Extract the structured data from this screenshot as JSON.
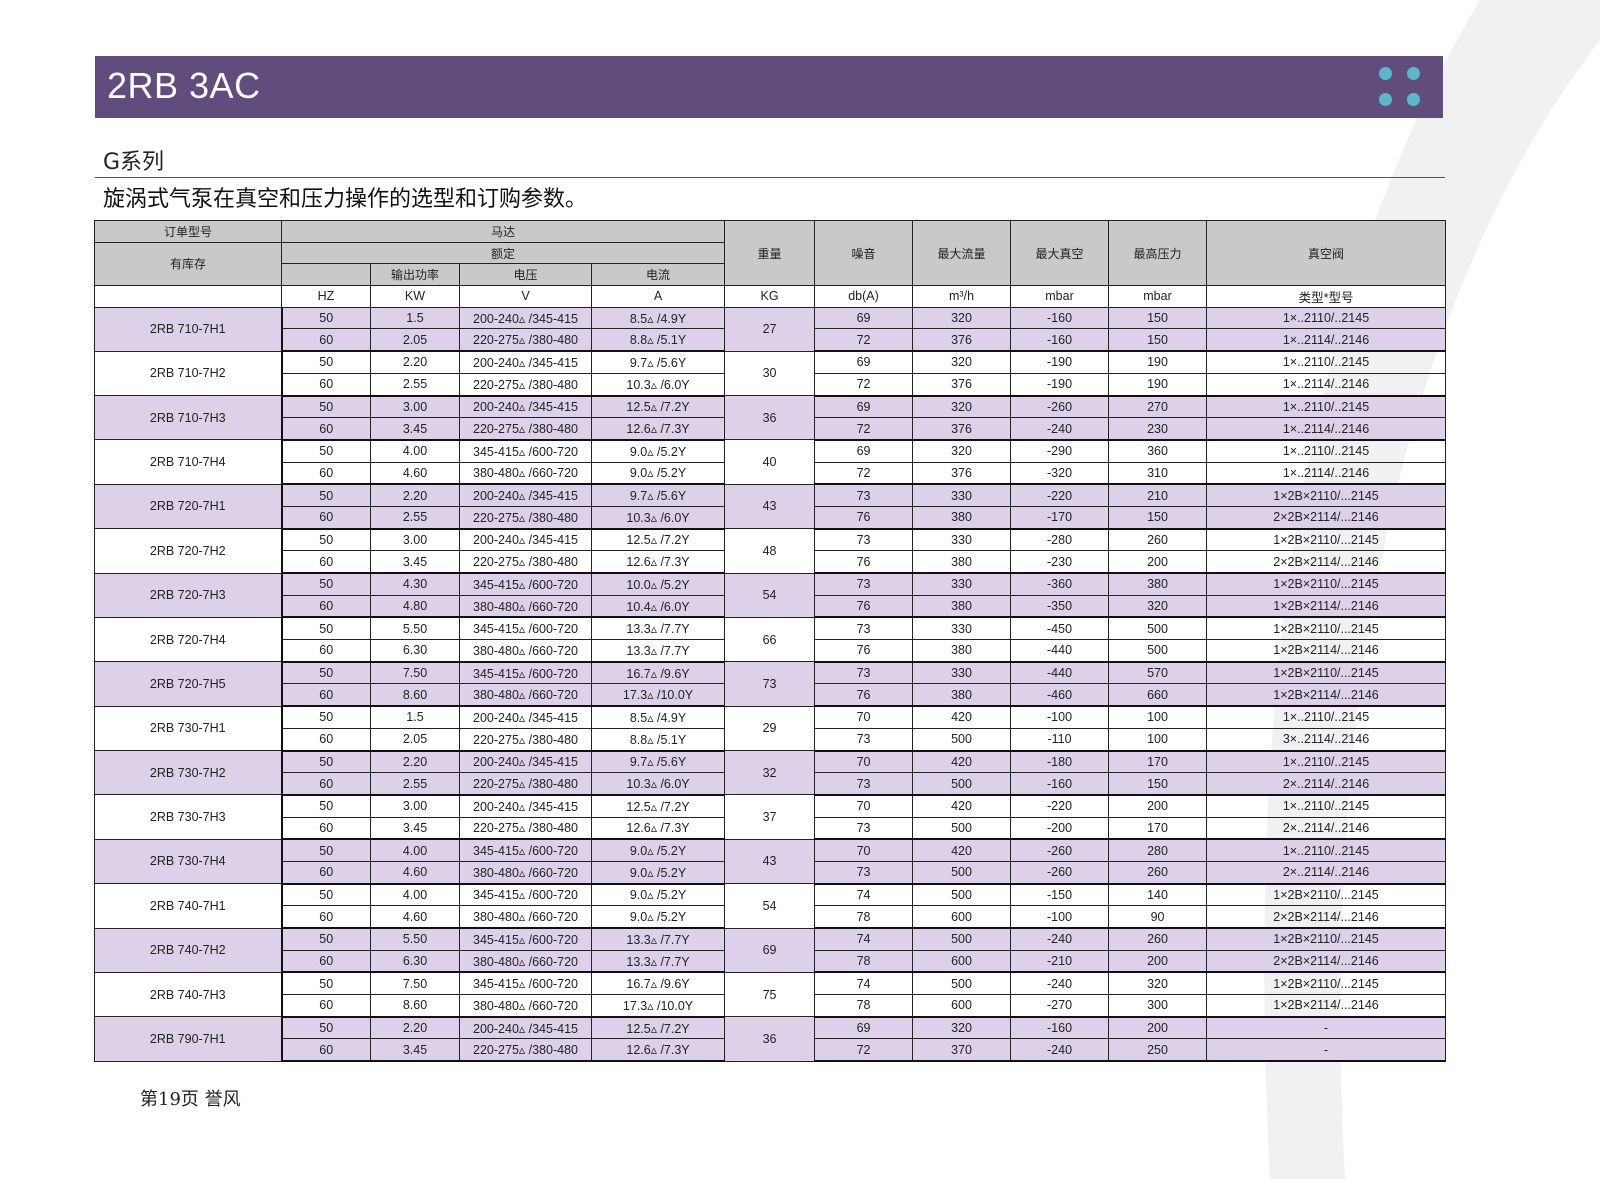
{
  "banner": {
    "title": "2RB 3AC",
    "bg_color": "#614c7e",
    "dot_color": "#5bb7cb"
  },
  "series": "G系列",
  "subtitle": "旋涡式气泵在真空和压力操作的选型和订购参数。",
  "table": {
    "headers": {
      "order_model": "订单型号",
      "in_stock": "有库存",
      "motor": "马达",
      "rated": "额定",
      "output_power": "输出功率",
      "voltage": "电压",
      "current": "电流",
      "weight": "重量",
      "noise": "噪音",
      "max_flow": "最大流量",
      "max_vacuum": "最大真空",
      "max_pressure": "最高压力",
      "vacuum_valve": "真空阀"
    },
    "units": [
      "",
      "HZ",
      "KW",
      "V",
      "A",
      "KG",
      "db(A)",
      "m³/h",
      "mbar",
      "mbar",
      "类型*型号"
    ],
    "shade_color": "#dcd1e8",
    "models": [
      {
        "model": "2RB 710-7H1",
        "weight": "27",
        "rows": [
          [
            "50",
            "1.5",
            "200-240▵ /345-415",
            "8.5▵ /4.9Y",
            "69",
            "320",
            "-160",
            "150",
            "1×..2110/..2145"
          ],
          [
            "60",
            "2.05",
            "220-275▵ /380-480",
            "8.8▵ /5.1Y",
            "72",
            "376",
            "-160",
            "150",
            "1×..2114/..2146"
          ]
        ]
      },
      {
        "model": "2RB 710-7H2",
        "weight": "30",
        "rows": [
          [
            "50",
            "2.20",
            "200-240▵ /345-415",
            "9.7▵ /5.6Y",
            "69",
            "320",
            "-190",
            "190",
            "1×..2110/..2145"
          ],
          [
            "60",
            "2.55",
            "220-275▵ /380-480",
            "10.3▵ /6.0Y",
            "72",
            "376",
            "-190",
            "190",
            "1×..2114/..2146"
          ]
        ]
      },
      {
        "model": "2RB 710-7H3",
        "weight": "36",
        "rows": [
          [
            "50",
            "3.00",
            "200-240▵ /345-415",
            "12.5▵ /7.2Y",
            "69",
            "320",
            "-260",
            "270",
            "1×..2110/..2145"
          ],
          [
            "60",
            "3.45",
            "220-275▵ /380-480",
            "12.6▵ /7.3Y",
            "72",
            "376",
            "-240",
            "230",
            "1×..2114/..2146"
          ]
        ]
      },
      {
        "model": "2RB 710-7H4",
        "weight": "40",
        "rows": [
          [
            "50",
            "4.00",
            "345-415▵ /600-720",
            "9.0▵ /5.2Y",
            "69",
            "320",
            "-290",
            "360",
            "1×..2110/..2145"
          ],
          [
            "60",
            "4.60",
            "380-480▵ /660-720",
            "9.0▵ /5.2Y",
            "72",
            "376",
            "-320",
            "310",
            "1×..2114/..2146"
          ]
        ]
      },
      {
        "model": "2RB 720-7H1",
        "weight": "43",
        "rows": [
          [
            "50",
            "2.20",
            "200-240▵ /345-415",
            "9.7▵ /5.6Y",
            "73",
            "330",
            "-220",
            "210",
            "1×2B×2110/...2145"
          ],
          [
            "60",
            "2.55",
            "220-275▵ /380-480",
            "10.3▵ /6.0Y",
            "76",
            "380",
            "-170",
            "150",
            "2×2B×2114/...2146"
          ]
        ]
      },
      {
        "model": "2RB 720-7H2",
        "weight": "48",
        "rows": [
          [
            "50",
            "3.00",
            "200-240▵ /345-415",
            "12.5▵ /7.2Y",
            "73",
            "330",
            "-280",
            "260",
            "1×2B×2110/...2145"
          ],
          [
            "60",
            "3.45",
            "220-275▵ /380-480",
            "12.6▵ /7.3Y",
            "76",
            "380",
            "-230",
            "200",
            "2×2B×2114/...2146"
          ]
        ]
      },
      {
        "model": "2RB 720-7H3",
        "weight": "54",
        "rows": [
          [
            "50",
            "4.30",
            "345-415▵ /600-720",
            "10.0▵ /5.2Y",
            "73",
            "330",
            "-360",
            "380",
            "1×2B×2110/...2145"
          ],
          [
            "60",
            "4.80",
            "380-480▵ /660-720",
            "10.4▵ /6.0Y",
            "76",
            "380",
            "-350",
            "320",
            "1×2B×2114/...2146"
          ]
        ]
      },
      {
        "model": "2RB 720-7H4",
        "weight": "66",
        "rows": [
          [
            "50",
            "5.50",
            "345-415▵ /600-720",
            "13.3▵ /7.7Y",
            "73",
            "330",
            "-450",
            "500",
            "1×2B×2110/...2145"
          ],
          [
            "60",
            "6.30",
            "380-480▵ /660-720",
            "13.3▵ /7.7Y",
            "76",
            "380",
            "-440",
            "500",
            "1×2B×2114/...2146"
          ]
        ]
      },
      {
        "model": "2RB 720-7H5",
        "weight": "73",
        "rows": [
          [
            "50",
            "7.50",
            "345-415▵ /600-720",
            "16.7▵ /9.6Y",
            "73",
            "330",
            "-440",
            "570",
            "1×2B×2110/...2145"
          ],
          [
            "60",
            "8.60",
            "380-480▵ /660-720",
            "17.3▵ /10.0Y",
            "76",
            "380",
            "-460",
            "660",
            "1×2B×2114/...2146"
          ]
        ]
      },
      {
        "model": "2RB 730-7H1",
        "weight": "29",
        "rows": [
          [
            "50",
            "1.5",
            "200-240▵ /345-415",
            "8.5▵ /4.9Y",
            "70",
            "420",
            "-100",
            "100",
            "1×..2110/..2145"
          ],
          [
            "60",
            "2.05",
            "220-275▵ /380-480",
            "8.8▵ /5.1Y",
            "73",
            "500",
            "-110",
            "100",
            "3×..2114/..2146"
          ]
        ]
      },
      {
        "model": "2RB 730-7H2",
        "weight": "32",
        "rows": [
          [
            "50",
            "2.20",
            "200-240▵ /345-415",
            "9.7▵ /5.6Y",
            "70",
            "420",
            "-180",
            "170",
            "1×..2110/..2145"
          ],
          [
            "60",
            "2.55",
            "220-275▵ /380-480",
            "10.3▵ /6.0Y",
            "73",
            "500",
            "-160",
            "150",
            "2×..2114/..2146"
          ]
        ]
      },
      {
        "model": "2RB 730-7H3",
        "weight": "37",
        "rows": [
          [
            "50",
            "3.00",
            "200-240▵ /345-415",
            "12.5▵ /7.2Y",
            "70",
            "420",
            "-220",
            "200",
            "1×..2110/..2145"
          ],
          [
            "60",
            "3.45",
            "220-275▵ /380-480",
            "12.6▵ /7.3Y",
            "73",
            "500",
            "-200",
            "170",
            "2×..2114/..2146"
          ]
        ]
      },
      {
        "model": "2RB 730-7H4",
        "weight": "43",
        "rows": [
          [
            "50",
            "4.00",
            "345-415▵ /600-720",
            "9.0▵ /5.2Y",
            "70",
            "420",
            "-260",
            "280",
            "1×..2110/..2145"
          ],
          [
            "60",
            "4.60",
            "380-480▵ /660-720",
            "9.0▵ /5.2Y",
            "73",
            "500",
            "-260",
            "260",
            "2×..2114/..2146"
          ]
        ]
      },
      {
        "model": "2RB 740-7H1",
        "weight": "54",
        "rows": [
          [
            "50",
            "4.00",
            "345-415▵ /600-720",
            "9.0▵ /5.2Y",
            "74",
            "500",
            "-150",
            "140",
            "1×2B×2110/...2145"
          ],
          [
            "60",
            "4.60",
            "380-480▵ /660-720",
            "9.0▵ /5.2Y",
            "78",
            "600",
            "-100",
            "90",
            "2×2B×2114/...2146"
          ]
        ]
      },
      {
        "model": "2RB 740-7H2",
        "weight": "69",
        "rows": [
          [
            "50",
            "5.50",
            "345-415▵ /600-720",
            "13.3▵ /7.7Y",
            "74",
            "500",
            "-240",
            "260",
            "1×2B×2110/...2145"
          ],
          [
            "60",
            "6.30",
            "380-480▵ /660-720",
            "13.3▵ /7.7Y",
            "78",
            "600",
            "-210",
            "200",
            "2×2B×2114/...2146"
          ]
        ]
      },
      {
        "model": "2RB 740-7H3",
        "weight": "75",
        "rows": [
          [
            "50",
            "7.50",
            "345-415▵ /600-720",
            "16.7▵ /9.6Y",
            "74",
            "500",
            "-240",
            "320",
            "1×2B×2110/...2145"
          ],
          [
            "60",
            "8.60",
            "380-480▵ /660-720",
            "17.3▵ /10.0Y",
            "78",
            "600",
            "-270",
            "300",
            "1×2B×2114/...2146"
          ]
        ]
      },
      {
        "model": "2RB 790-7H1",
        "weight": "36",
        "rows": [
          [
            "50",
            "2.20",
            "200-240▵ /345-415",
            "12.5▵ /7.2Y",
            "69",
            "320",
            "-160",
            "200",
            "-"
          ],
          [
            "60",
            "3.45",
            "220-275▵ /380-480",
            "12.6▵ /7.3Y",
            "72",
            "370",
            "-240",
            "250",
            "-"
          ]
        ]
      }
    ]
  },
  "footer": "第19页  誉风"
}
